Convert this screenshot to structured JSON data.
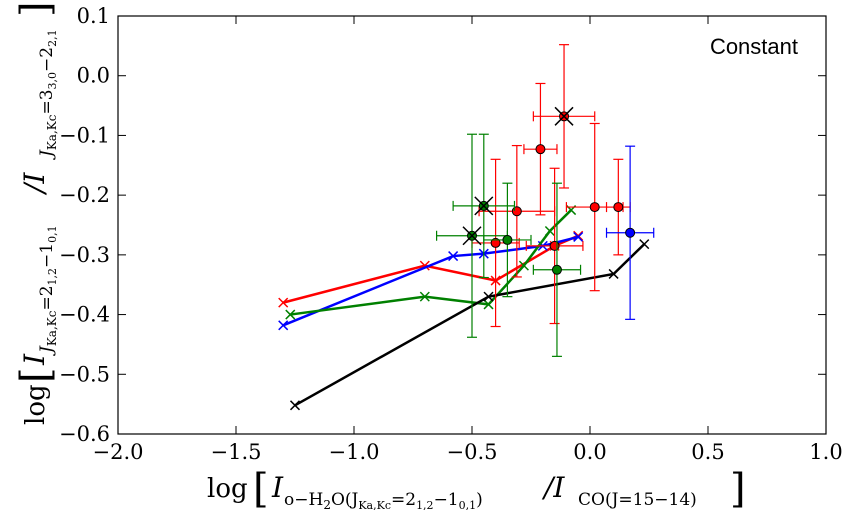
{
  "chart_data": {
    "type": "scatter",
    "annotation": "Constant",
    "xlabel": {
      "prefix": "log",
      "main": "I",
      "sub1": "o−H",
      "sub1b": "2",
      "sub1c": "O(J",
      "sub1d": "Ka,Kc",
      "sub1e": "=2",
      "sub1f": "1,2",
      "sub1g": "−1",
      "sub1h": "0,1",
      "sub1i": ")",
      "slash": "/I",
      "sub2": "CO(J=15−14)"
    },
    "ylabel": {
      "prefix": "log",
      "main": "I",
      "sub1": "J",
      "sub1b": "Ka,Kc",
      "sub1c": "=2",
      "sub1d": "1,2",
      "sub1e": "−1",
      "sub1f": "0,1",
      "slash": "/I",
      "sub2": "J",
      "sub2b": "Ka,Kc",
      "sub2c": "=3",
      "sub2d": "3,0",
      "sub2e": "−2",
      "sub2f": "2,1"
    },
    "xlim": [
      -2.0,
      1.0
    ],
    "ylim": [
      -0.6,
      0.1
    ],
    "xticks": [
      -2.0,
      -1.5,
      -1.0,
      -0.5,
      0.0,
      0.5,
      1.0
    ],
    "xtick_labels": [
      "−2.0",
      "−1.5",
      "−1.0",
      "−0.5",
      "0.0",
      "0.5",
      "1.0"
    ],
    "yticks": [
      -0.6,
      -0.5,
      -0.4,
      -0.3,
      -0.2,
      -0.1,
      0.0,
      0.1
    ],
    "ytick_labels": [
      "−0.6",
      "−0.5",
      "−0.4",
      "−0.3",
      "−0.2",
      "−0.1",
      "0.0",
      "0.1"
    ],
    "series_lines": [
      {
        "name": "red model",
        "color": "#ff0000",
        "x": [
          -1.3,
          -0.7,
          -0.4,
          -0.15,
          -0.05
        ],
        "y": [
          -0.38,
          -0.318,
          -0.343,
          -0.285,
          -0.268
        ]
      },
      {
        "name": "blue model",
        "color": "#0000ff",
        "x": [
          -1.3,
          -0.58,
          -0.45,
          -0.2,
          -0.05
        ],
        "y": [
          -0.418,
          -0.302,
          -0.298,
          -0.285,
          -0.27
        ]
      },
      {
        "name": "green model",
        "color": "#008000",
        "x": [
          -1.27,
          -0.7,
          -0.43,
          -0.28,
          -0.17,
          -0.08
        ],
        "y": [
          -0.4,
          -0.37,
          -0.383,
          -0.318,
          -0.26,
          -0.225
        ]
      },
      {
        "name": "black model",
        "color": "#000000",
        "x": [
          -1.25,
          -0.43,
          0.1,
          0.23
        ],
        "y": [
          -0.552,
          -0.37,
          -0.332,
          -0.282
        ]
      }
    ],
    "observations": [
      {
        "color": "#ff0000",
        "x": -0.11,
        "y": -0.068,
        "xerr": 0.13,
        "yerr": 0.12,
        "cross": true
      },
      {
        "color": "#ff0000",
        "x": -0.21,
        "y": -0.123,
        "xerr": 0.07,
        "yerr": 0.11,
        "cross": false
      },
      {
        "color": "#ff0000",
        "x": -0.31,
        "y": -0.227,
        "xerr": 0.16,
        "yerr": 0.11,
        "cross": false
      },
      {
        "color": "#ff0000",
        "x": -0.4,
        "y": -0.28,
        "xerr": 0.1,
        "yerr": 0.14,
        "cross": false
      },
      {
        "color": "#ff0000",
        "x": -0.15,
        "y": -0.285,
        "xerr": 0.12,
        "yerr": 0.13,
        "cross": false
      },
      {
        "color": "#ff0000",
        "x": 0.02,
        "y": -0.22,
        "xerr": 0.12,
        "yerr": 0.14,
        "cross": false
      },
      {
        "color": "#ff0000",
        "x": 0.12,
        "y": -0.22,
        "xerr": 0.05,
        "yerr": 0.08,
        "cross": false
      },
      {
        "color": "#0000ff",
        "x": 0.17,
        "y": -0.263,
        "xerr": 0.1,
        "yerr": 0.145,
        "cross": false
      },
      {
        "color": "#008000",
        "x": -0.5,
        "y": -0.268,
        "xerr": 0.15,
        "yerr": 0.17,
        "cross": true
      },
      {
        "color": "#008000",
        "x": -0.45,
        "y": -0.218,
        "xerr": 0.13,
        "yerr": 0.12,
        "cross": true
      },
      {
        "color": "#008000",
        "x": -0.35,
        "y": -0.275,
        "xerr": 0.1,
        "yerr": 0.095,
        "cross": false
      },
      {
        "color": "#008000",
        "x": -0.14,
        "y": -0.325,
        "xerr": 0.1,
        "yerr": 0.145,
        "cross": false
      }
    ]
  }
}
